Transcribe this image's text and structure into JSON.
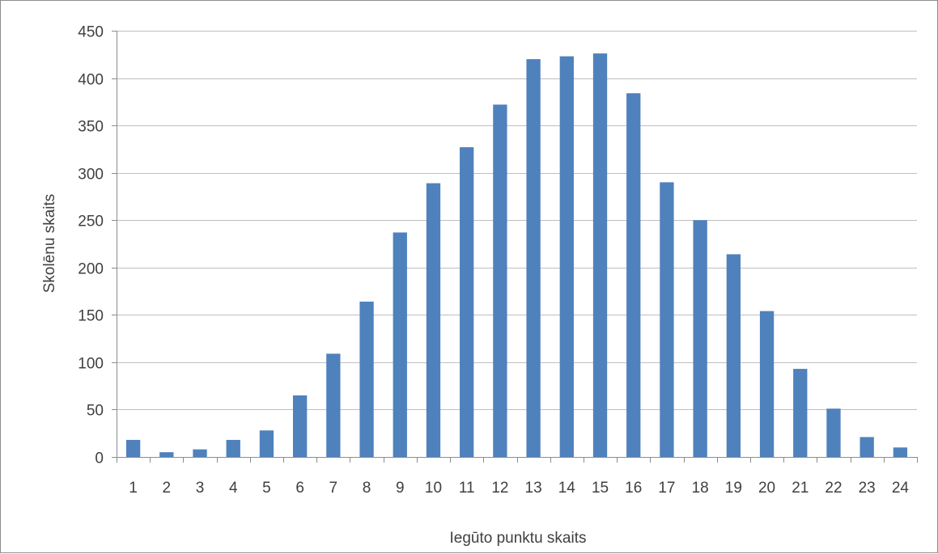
{
  "chart_data": {
    "type": "bar",
    "title": "",
    "xlabel": "Iegūto punktu skaits",
    "ylabel": "Skolēnu skaits",
    "categories": [
      "1",
      "2",
      "3",
      "4",
      "5",
      "6",
      "7",
      "8",
      "9",
      "10",
      "11",
      "12",
      "13",
      "14",
      "15",
      "16",
      "17",
      "18",
      "19",
      "20",
      "21",
      "22",
      "23",
      "24"
    ],
    "values": [
      18,
      5,
      8,
      18,
      28,
      65,
      109,
      164,
      237,
      289,
      327,
      372,
      420,
      423,
      426,
      384,
      290,
      250,
      214,
      154,
      93,
      51,
      21,
      10
    ],
    "ylim": [
      0,
      450
    ],
    "yticks": [
      0,
      50,
      100,
      150,
      200,
      250,
      300,
      350,
      400,
      450
    ],
    "grid": "horizontal",
    "legend": "none",
    "colors": {
      "bar": "#4f81bd",
      "grid": "#bfbfbf",
      "axis": "#8c8c8c",
      "text": "#404040"
    }
  }
}
